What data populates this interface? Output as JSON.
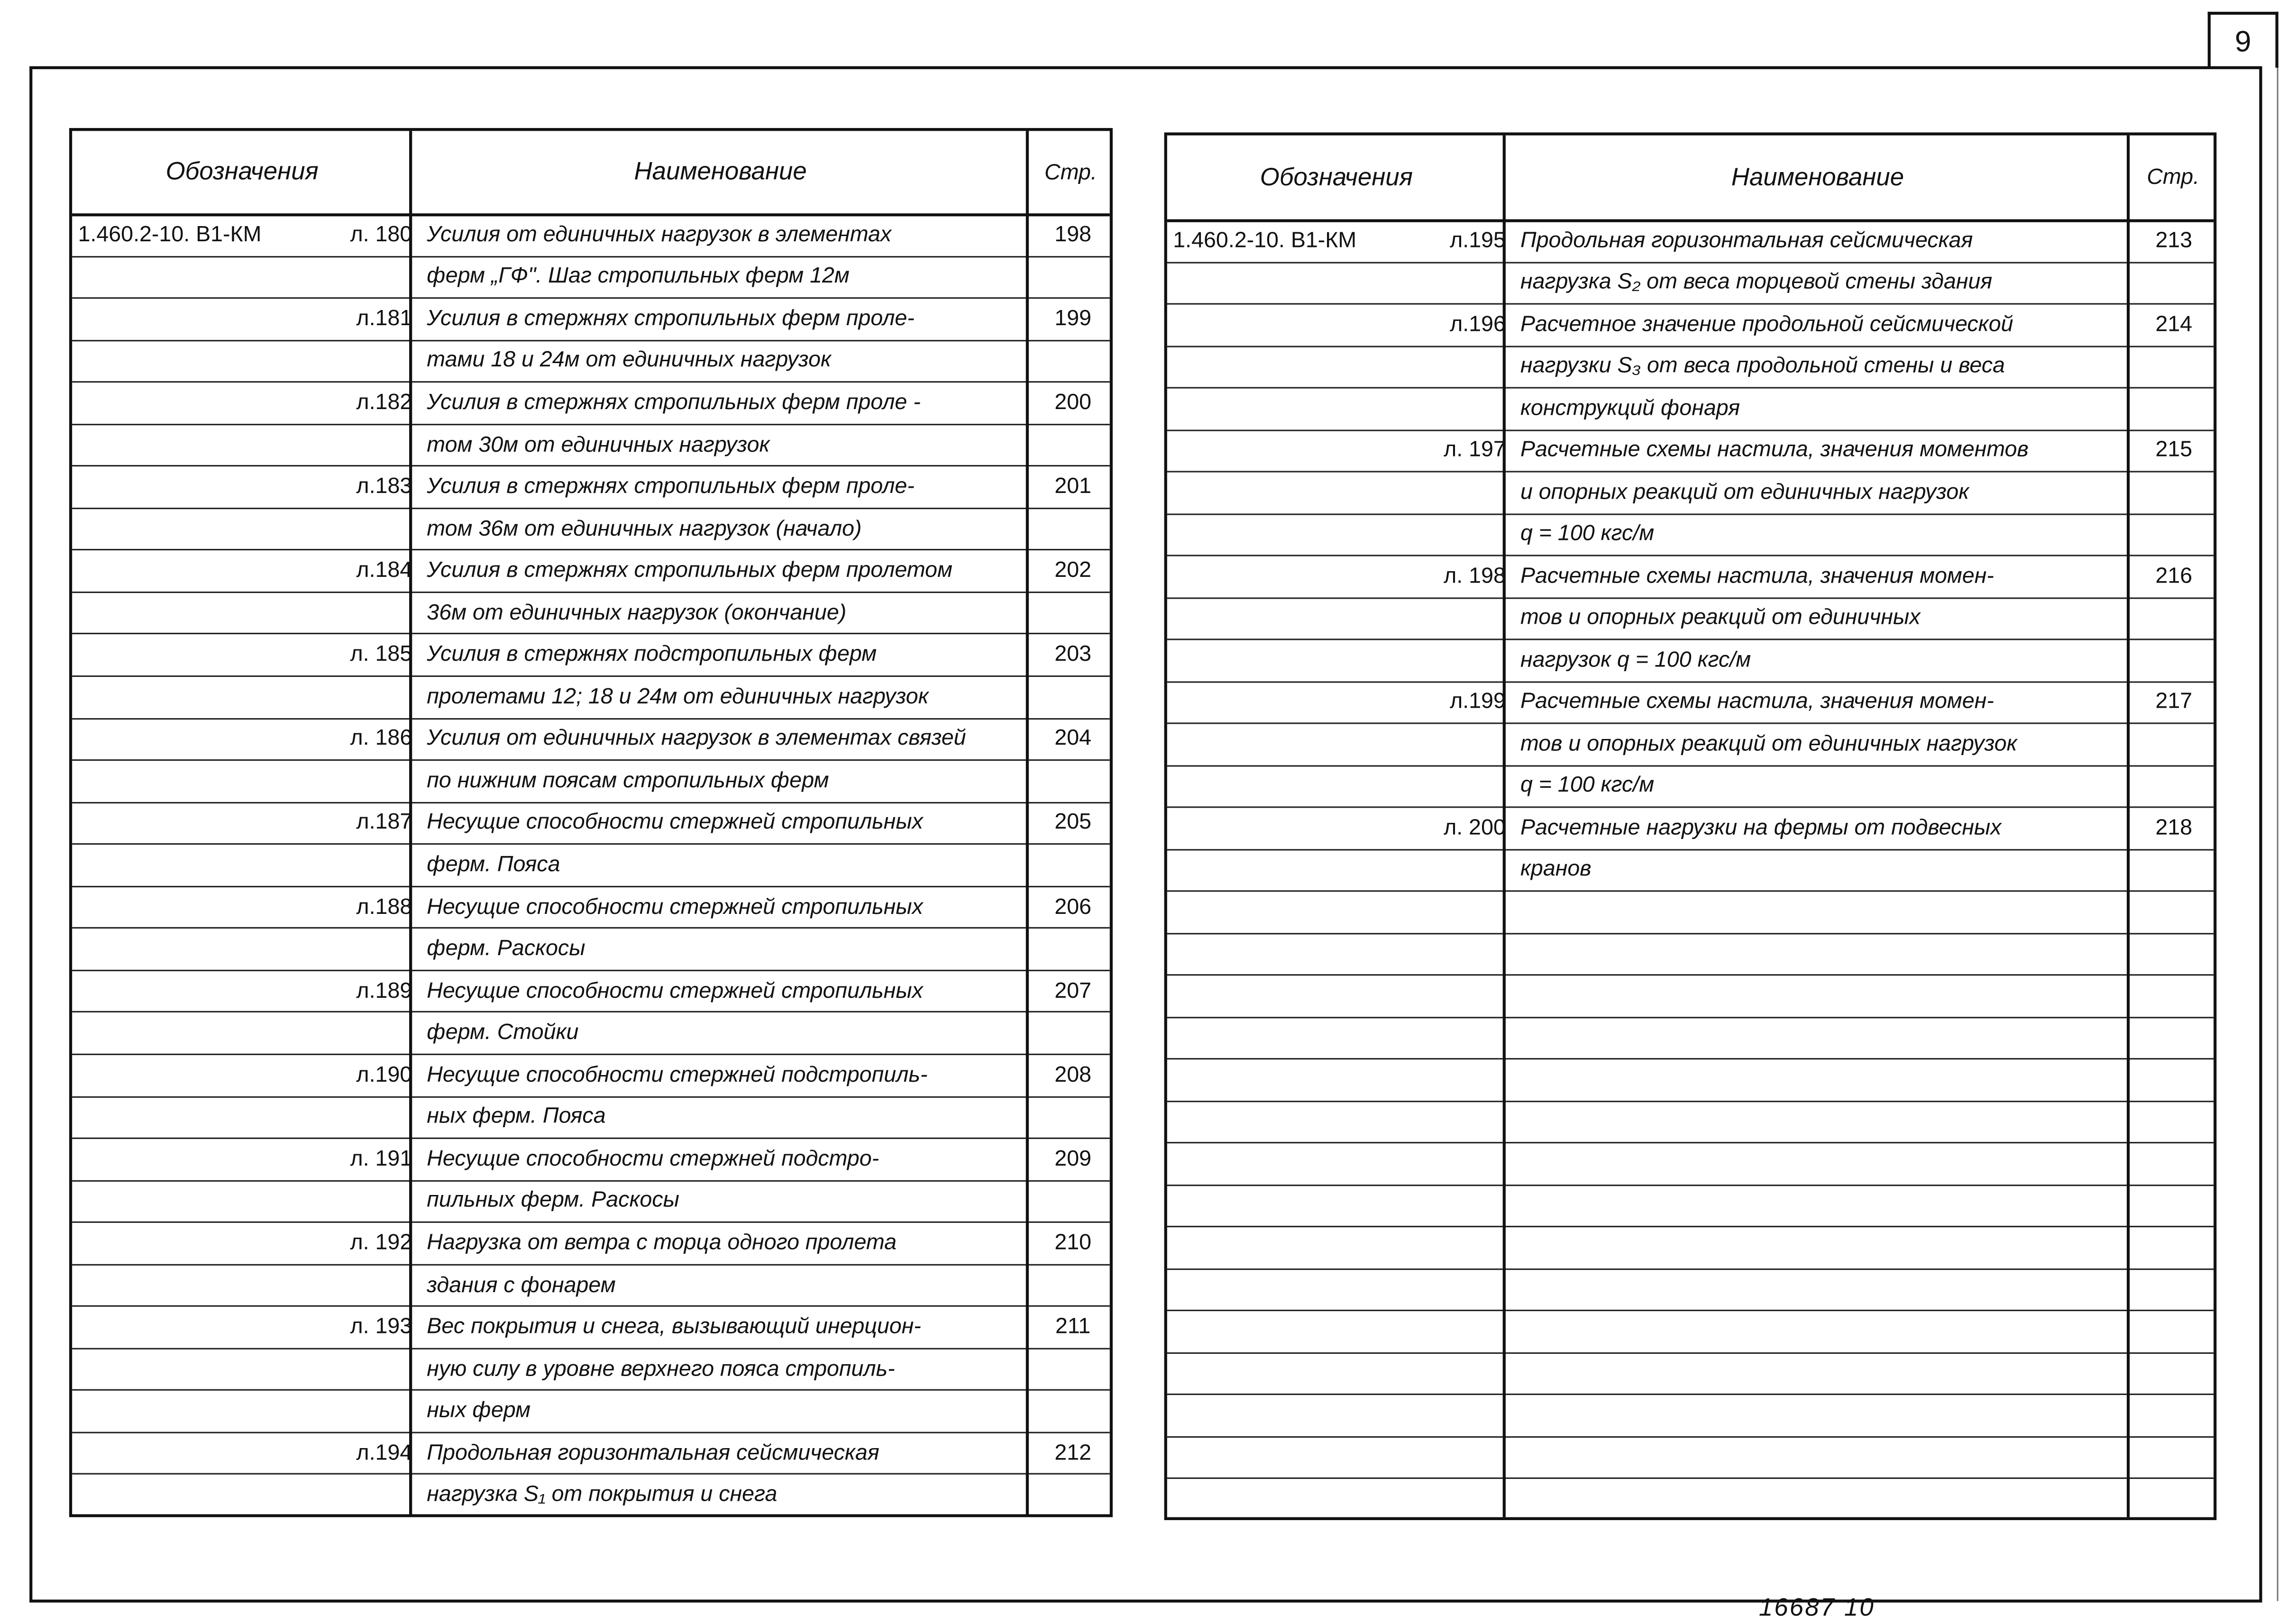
{
  "sheet_number": "9",
  "footer_code": "16687  10",
  "headers": {
    "designation": "Обозначения",
    "name": "Наименование",
    "page": "Стр."
  },
  "left_table": [
    {
      "code": "1.460.2-10. В1-КМ",
      "sheet": "л. 180",
      "text": "Усилия от единичных нагрузок в элементах",
      "page": "198"
    },
    {
      "code": "",
      "sheet": "",
      "text": "ферм „ГФ\". Шаг стропильных ферм 12м",
      "page": ""
    },
    {
      "code": "",
      "sheet": "л.181",
      "text": "Усилия в стержнях стропильных ферм проле-",
      "page": "199"
    },
    {
      "code": "",
      "sheet": "",
      "text": "тами 18 и 24м от единичных нагрузок",
      "page": ""
    },
    {
      "code": "",
      "sheet": "л.182",
      "text": "Усилия в стержнях стропильных ферм проле -",
      "page": "200"
    },
    {
      "code": "",
      "sheet": "",
      "text": "том 30м от единичных нагрузок",
      "page": ""
    },
    {
      "code": "",
      "sheet": "л.183",
      "text": "Усилия в стержнях стропильных ферм проле-",
      "page": "201"
    },
    {
      "code": "",
      "sheet": "",
      "text": "том 36м от единичных нагрузок (начало)",
      "page": ""
    },
    {
      "code": "",
      "sheet": "л.184",
      "text": "Усилия в стержнях стропильных ферм пролетом",
      "page": "202"
    },
    {
      "code": "",
      "sheet": "",
      "text": "36м от единичных нагрузок (окончание)",
      "page": ""
    },
    {
      "code": "",
      "sheet": "л. 185",
      "text": "Усилия в стержнях подстропильных ферм",
      "page": "203"
    },
    {
      "code": "",
      "sheet": "",
      "text": "пролетами 12; 18 и 24м от единичных нагрузок",
      "page": ""
    },
    {
      "code": "",
      "sheet": "л. 186",
      "text": "Усилия от единичных нагрузок в элементах связей",
      "page": "204"
    },
    {
      "code": "",
      "sheet": "",
      "text": "по нижним поясам стропильных ферм",
      "page": ""
    },
    {
      "code": "",
      "sheet": "л.187",
      "text": "Несущие способности стержней стропильных",
      "page": "205"
    },
    {
      "code": "",
      "sheet": "",
      "text": "ферм. Пояса",
      "page": ""
    },
    {
      "code": "",
      "sheet": "л.188",
      "text": "Несущие способности стержней стропильных",
      "page": "206"
    },
    {
      "code": "",
      "sheet": "",
      "text": "ферм. Раскосы",
      "page": ""
    },
    {
      "code": "",
      "sheet": "л.189",
      "text": "Несущие способности стержней стропильных",
      "page": "207"
    },
    {
      "code": "",
      "sheet": "",
      "text": "ферм. Стойки",
      "page": ""
    },
    {
      "code": "",
      "sheet": "л.190",
      "text": "Несущие способности стержней подстропиль-",
      "page": "208"
    },
    {
      "code": "",
      "sheet": "",
      "text": "ных ферм. Пояса",
      "page": ""
    },
    {
      "code": "",
      "sheet": "л. 191",
      "text": "Несущие способности стержней подстро-",
      "page": "209"
    },
    {
      "code": "",
      "sheet": "",
      "text": "пильных ферм. Раскосы",
      "page": ""
    },
    {
      "code": "",
      "sheet": "л. 192",
      "text": "Нагрузка от ветра с торца одного пролета",
      "page": "210"
    },
    {
      "code": "",
      "sheet": "",
      "text": "здания с фонарем",
      "page": ""
    },
    {
      "code": "",
      "sheet": "л. 193",
      "text": "Вес покрытия и снега, вызывающий инерцион-",
      "page": "211"
    },
    {
      "code": "",
      "sheet": "",
      "text": "ную силу в уровне верхнего пояса стропиль-",
      "page": ""
    },
    {
      "code": "",
      "sheet": "",
      "text": "ных ферм",
      "page": ""
    },
    {
      "code": "",
      "sheet": "л.194",
      "text": "Продольная горизонтальная сейсмическая",
      "page": "212"
    },
    {
      "code": "",
      "sheet": "",
      "text": "нагрузка S₁ от покрытия и снега",
      "page": ""
    }
  ],
  "right_table": [
    {
      "code": "1.460.2-10. В1-КМ",
      "sheet": "л.195",
      "text": "Продольная горизонтальная сейсмическая",
      "page": "213"
    },
    {
      "code": "",
      "sheet": "",
      "text": "нагрузка S₂ от веса торцевой стены здания",
      "page": ""
    },
    {
      "code": "",
      "sheet": "л.196",
      "text": "Расчетное значение продольной сейсмической",
      "page": "214"
    },
    {
      "code": "",
      "sheet": "",
      "text": "нагрузки S₃ от веса продольной стены и веса",
      "page": ""
    },
    {
      "code": "",
      "sheet": "",
      "text": "конструкций фонаря",
      "page": ""
    },
    {
      "code": "",
      "sheet": "л. 197",
      "text": "Расчетные схемы настила, значения моментов",
      "page": "215"
    },
    {
      "code": "",
      "sheet": "",
      "text": "и опорных реакций от единичных нагрузок",
      "page": ""
    },
    {
      "code": "",
      "sheet": "",
      "text": "q = 100 кгс/м",
      "page": ""
    },
    {
      "code": "",
      "sheet": "л. 198",
      "text": "Расчетные схемы настила, значения момен-",
      "page": "216"
    },
    {
      "code": "",
      "sheet": "",
      "text": "тов и опорных реакций от единичных",
      "page": ""
    },
    {
      "code": "",
      "sheet": "",
      "text": "нагрузок q = 100 кгс/м",
      "page": ""
    },
    {
      "code": "",
      "sheet": "л.199",
      "text": "Расчетные схемы настила, значения момен-",
      "page": "217"
    },
    {
      "code": "",
      "sheet": "",
      "text": "тов и опорных реакций от единичных нагрузок",
      "page": ""
    },
    {
      "code": "",
      "sheet": "",
      "text": "q = 100 кгс/м",
      "page": ""
    },
    {
      "code": "",
      "sheet": "л. 200",
      "text": "Расчетные нагрузки на фермы от подвесных",
      "page": "218"
    },
    {
      "code": "",
      "sheet": "",
      "text": "кранов",
      "page": ""
    }
  ]
}
